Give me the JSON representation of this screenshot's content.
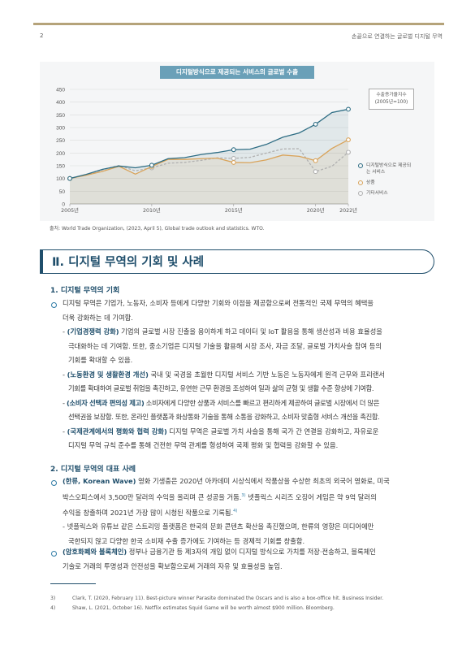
{
  "header": {
    "page_number": "2",
    "running_title": "손끝으로 연결하는 글로벌 디지털 무역"
  },
  "chart": {
    "title": "디지털방식으로 제공되는 서비스의 글로벌 수출",
    "index_note_line1": "수출증가율지수",
    "index_note_line2": "(2005년=100)",
    "source": "출처: World Trade Organization, (2023, April 5), Global trade outlook and statistics. WTO."
  },
  "chart_data": {
    "type": "line",
    "x": [
      2005,
      2006,
      2007,
      2008,
      2009,
      2010,
      2011,
      2012,
      2013,
      2014,
      2015,
      2016,
      2017,
      2018,
      2019,
      2020,
      2021,
      2022
    ],
    "x_tick_labels": [
      "2005년",
      "2010년",
      "2015년",
      "2020년",
      "2022년"
    ],
    "x_ticks": [
      2005,
      2010,
      2015,
      2020,
      2022
    ],
    "ylim": [
      0,
      450
    ],
    "y_ticks": [
      0,
      50,
      100,
      150,
      200,
      250,
      300,
      350,
      400,
      450
    ],
    "grid": true,
    "legend_position": "right",
    "series": [
      {
        "name": "디지털방식으로 제공되는 서비스",
        "color": "#2e6d84",
        "style": "solid",
        "values": [
          100,
          116,
          136,
          149,
          142,
          152,
          178,
          182,
          194,
          202,
          213,
          215,
          234,
          262,
          279,
          313,
          359,
          372
        ]
      },
      {
        "name": "상품",
        "color": "#d9a35a",
        "style": "solid",
        "values": [
          100,
          113,
          128,
          148,
          117,
          147,
          175,
          175,
          178,
          180,
          163,
          162,
          173,
          192,
          187,
          170,
          218,
          252
        ]
      },
      {
        "name": "기타서비스",
        "color": "#b0b0b0",
        "style": "dashed",
        "values": [
          100,
          114,
          134,
          151,
          130,
          142,
          160,
          163,
          171,
          181,
          179,
          183,
          200,
          216,
          217,
          127,
          148,
          203
        ]
      }
    ],
    "markers": {
      "x_indices": [
        0,
        5,
        10,
        15,
        17
      ]
    }
  },
  "section": {
    "title": "Ⅱ. 디지털 무역의 기회 및 사례",
    "sub1": {
      "heading": "1. 디지털 무역의 기회",
      "intro_line1": "디지털 무역은 기업가, 노동자, 소비자 등에게 다양한 기회와 이점을 제공함으로써 전통적인 국제 무역의 혜택을",
      "intro_line2": "더욱 강화하는 데 기여함.",
      "item1_kw": "(기업경쟁력 강화)",
      "item1_l1": " 기업의 글로벌 시장 진출을 용이하게 하고 데이터 및 IoT 활용을 통해 생산성과 비용 효율성을",
      "item1_l2": "극대화하는 데 기여함. 또한, 중소기업은 디지털 기술을 활용해 시장 조사, 자금 조달, 글로벌 가치사슬 참여 등의",
      "item1_l3": "기회를 확대할 수 있음.",
      "item2_kw": "(노동환경 및 생활환경 개선)",
      "item2_l1": " 국내 및 국경을 초월한 디지털 서비스 기반 노동은 노동자에게 원격 근무와 프리랜서",
      "item2_l2": "기회를 확대하여 글로벌 취업을 촉진하고, 유연한 근무 환경을 조성하여 일과 삶의 균형 및 생활 수준 향상에 기여함.",
      "item3_kw": "(소비자 선택과 편의성 제고)",
      "item3_l1": " 소비자에게 다양한 상품과 서비스를 빠르고 편리하게 제공하여 글로벌 시장에서 더 많은",
      "item3_l2": "선택권을 보장함. 또한, 온라인 플랫폼과 화상통화 기술을 통해 소통을 강화하고, 소비자 맞춤형 서비스 개선을 촉진함.",
      "item4_kw": "(국제관계에서의 평화와 협력 강화)",
      "item4_l1": " 디지털 무역은 글로벌 가치 사슬을 통해 국가 간 연결을 강화하고, 자유로운",
      "item4_l2": "디지털 무역 규칙 준수를 통해 건전한 무역 관계를 형성하여 국제 평화 및 협력을 강화할 수 있음."
    },
    "sub2": {
      "heading": "2. 디지털 무역의 대표 사례",
      "case1_kw": "(한류, Korean Wave)",
      "case1_l1": " 영화 기생충은 2020년 아카데미 시상식에서 작품상을 수상한 최초의 외국어 영화로, 미국",
      "case1_l2a": "박스오피스에서 3,500만 달러의 수익을 올리며 큰 성공을 거둠.",
      "case1_sup1": "3)",
      "case1_l2b": " 넷플릭스 시리즈 오징어 게임은 약 9억 달러의",
      "case1_l3": "수익을 창출하며 2021년 가장 많이 시청된 작품으로 기록됨.",
      "case1_sup2": "4)",
      "case1_sub_l1": "넷플릭스와 유튜브 같은 스트리밍 플랫폼은 한국의 문화 콘텐츠 확산을 촉진했으며, 한류의 영향은 미디어에만",
      "case1_sub_l2": "국한되지 않고 다양한 한국 소비재 수출 증가에도 기여하는 등 경제적 기회를 창출함.",
      "case2_kw": "(암호화폐와 블록체인)",
      "case2_l1": " 정부나 금융기관 등 제3자의 개입 없이 디지털 방식으로 가치를 저장·전송하고, 블록체인",
      "case2_l2": "기술로 거래의 투명성과 안전성을 확보함으로써 거래의 자유 및 효율성을 높임."
    }
  },
  "footnotes": [
    {
      "num": "3)",
      "text": "Clark, T. (2020, February 11). Best-picture winner Parasite dominated the Oscars and is also a box-office hit. Business Insider."
    },
    {
      "num": "4)",
      "text": "Shaw, L. (2021, October 16). Netflix estimates Squid Game will be worth almost $900 million. Bloomberg."
    }
  ]
}
